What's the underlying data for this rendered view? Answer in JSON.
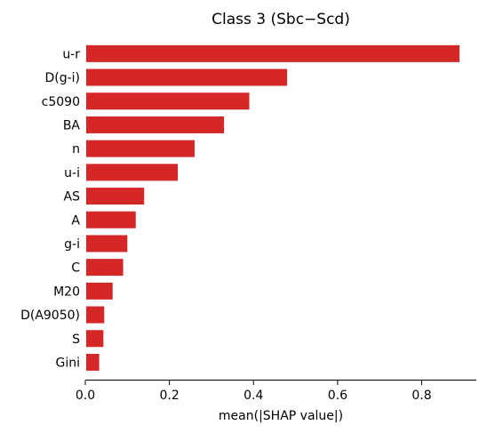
{
  "chart_data": {
    "type": "bar",
    "orientation": "horizontal",
    "title": "Class 3 (Sbc−Scd)",
    "xlabel": "mean(|SHAP value|)",
    "ylabel": "",
    "categories": [
      "u-r",
      "D(g-i)",
      "c5090",
      "BA",
      "n",
      "u-i",
      "AS",
      "A",
      "g-i",
      "C",
      "M20",
      "D(A9050)",
      "S",
      "Gini"
    ],
    "values": [
      0.89,
      0.48,
      0.39,
      0.33,
      0.26,
      0.22,
      0.14,
      0.12,
      0.1,
      0.09,
      0.065,
      0.045,
      0.043,
      0.033
    ],
    "xlim": [
      0,
      0.93
    ],
    "xticks": [
      0.0,
      0.2,
      0.4,
      0.6,
      0.8
    ],
    "xtick_labels": [
      "0.0",
      "0.2",
      "0.4",
      "0.6",
      "0.8"
    ],
    "bar_color": "#d62728",
    "grid": false
  }
}
